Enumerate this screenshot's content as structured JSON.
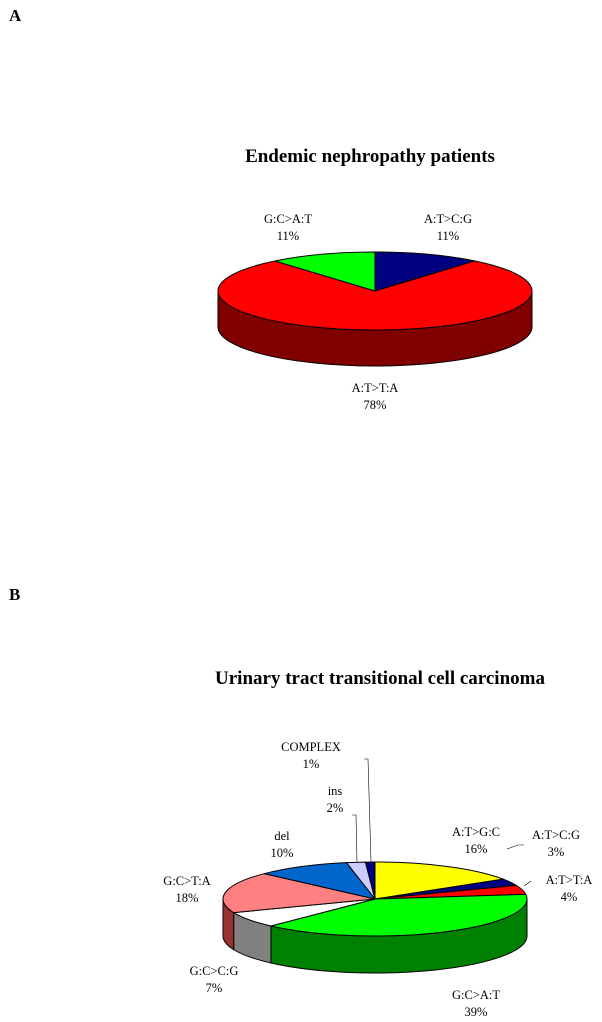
{
  "panels": {
    "a": "A",
    "b": "B"
  },
  "chart_data": [
    {
      "type": "pie",
      "title": "Endemic nephropathy patients",
      "categories": [
        "A:T>C:G",
        "A:T>T:A",
        "G:C>A:T"
      ],
      "values": [
        11,
        78,
        11
      ],
      "value_labels": [
        "11%",
        "78%",
        "11%"
      ],
      "colors": [
        "#000080",
        "#ff0000",
        "#00ff00"
      ],
      "side_colors": [
        "#000050",
        "#800000",
        "#009000"
      ]
    },
    {
      "type": "pie",
      "title": "Urinary tract transitional cell carcinoma",
      "categories": [
        "A:T>G:C",
        "A:T>C:G",
        "A:T>T:A",
        "G:C>A:T",
        "G:C>C:G",
        "G:C>T:A",
        "del",
        "ins",
        "COMPLEX"
      ],
      "values": [
        16,
        3,
        4,
        39,
        7,
        18,
        10,
        2,
        1
      ],
      "value_labels": [
        "16%",
        "3%",
        "4%",
        "39%",
        "7%",
        "18%",
        "10%",
        "2%",
        "1%"
      ],
      "colors": [
        "#ffff00",
        "#000080",
        "#ff0000",
        "#00ff00",
        "#ffffff",
        "#ff8080",
        "#0066cc",
        "#ccccff",
        "#000080"
      ],
      "side_colors": [
        "#999900",
        "#000050",
        "#800000",
        "#008000",
        "#808080",
        "#993333",
        "#003366",
        "#666699",
        "#000050"
      ]
    }
  ]
}
